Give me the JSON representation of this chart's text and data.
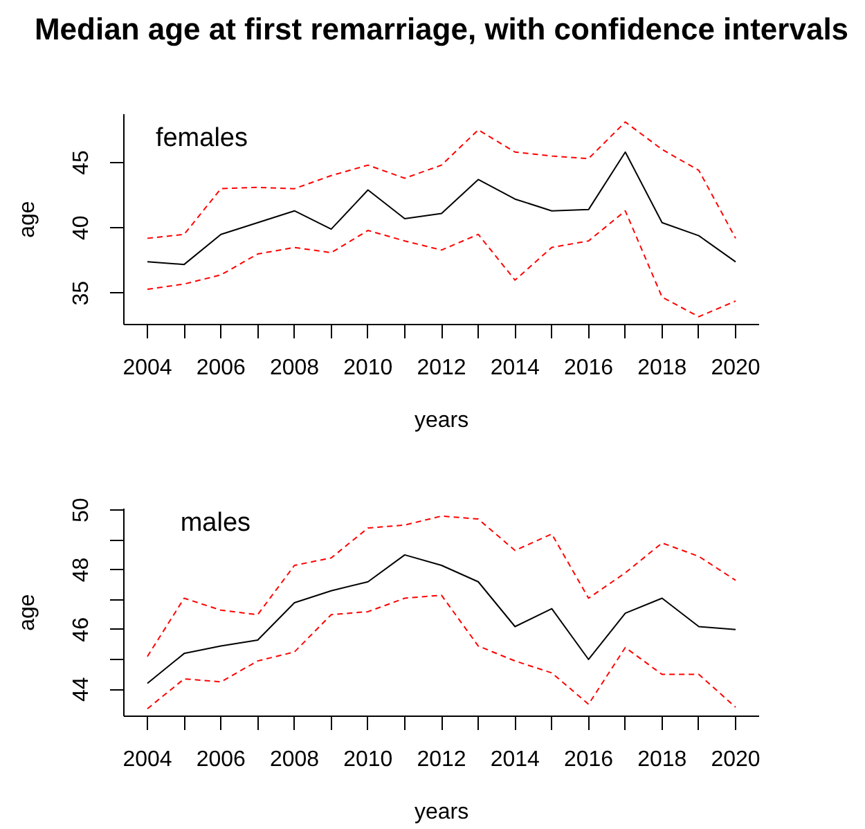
{
  "chart_data": [
    {
      "type": "line",
      "title": "Median age at first remarriage, with confidence intervals",
      "xlabel": "years",
      "ylabel": "age",
      "annotations": [
        "females"
      ],
      "x": [
        2004,
        2005,
        2006,
        2007,
        2008,
        2009,
        2010,
        2011,
        2012,
        2013,
        2014,
        2015,
        2016,
        2017,
        2018,
        2019,
        2020
      ],
      "series": [
        {
          "color": "#000000",
          "line_style": "solid",
          "values": [
            37.4,
            37.2,
            39.5,
            40.4,
            41.3,
            39.9,
            42.9,
            40.7,
            41.1,
            43.7,
            42.2,
            41.3,
            41.4,
            45.8,
            40.4,
            39.4,
            37.4
          ]
        },
        {
          "color": "#ff0000",
          "line_style": "dashed",
          "values": [
            39.2,
            39.5,
            43.0,
            43.1,
            43.0,
            44.0,
            44.8,
            43.8,
            44.8,
            47.5,
            45.8,
            45.5,
            45.3,
            48.1,
            46.0,
            44.4,
            39.2
          ]
        },
        {
          "color": "#ff0000",
          "line_style": "dashed",
          "values": [
            35.3,
            35.7,
            36.4,
            38.0,
            38.5,
            38.1,
            39.8,
            39.0,
            38.3,
            39.5,
            36.0,
            38.5,
            39.0,
            41.3,
            34.7,
            33.2,
            34.4
          ]
        }
      ],
      "xlim": [
        2003.36,
        2020.64
      ],
      "ylim": [
        32.6,
        48.7
      ],
      "xticks": [
        2004,
        {
          "value": 2005,
          "label": null
        },
        2006,
        {
          "value": 2007,
          "label": null
        },
        2008,
        {
          "value": 2009,
          "label": null
        },
        2010,
        {
          "value": 2011,
          "label": null
        },
        2012,
        {
          "value": 2013,
          "label": null
        },
        2014,
        {
          "value": 2015,
          "label": null
        },
        2016,
        {
          "value": 2017,
          "label": null
        },
        2018,
        {
          "value": 2019,
          "label": null
        },
        2020
      ],
      "yticks": [
        35,
        40,
        45
      ]
    },
    {
      "type": "line",
      "xlabel": "years",
      "ylabel": "age",
      "annotations": [
        "males"
      ],
      "x": [
        2004,
        2005,
        2006,
        2007,
        2008,
        2009,
        2010,
        2011,
        2012,
        2013,
        2014,
        2015,
        2016,
        2017,
        2018,
        2019,
        2020
      ],
      "series": [
        {
          "color": "#000000",
          "line_style": "solid",
          "values": [
            44.2,
            45.2,
            45.45,
            45.65,
            46.9,
            47.3,
            47.6,
            48.5,
            48.15,
            47.6,
            46.1,
            46.7,
            45.0,
            46.55,
            47.05,
            46.1,
            46.0
          ]
        },
        {
          "color": "#ff0000",
          "line_style": "dashed",
          "values": [
            45.1,
            47.05,
            46.65,
            46.5,
            48.15,
            48.4,
            49.4,
            49.5,
            49.8,
            49.7,
            48.65,
            49.2,
            47.05,
            47.9,
            48.9,
            48.45,
            47.65
          ]
        },
        {
          "color": "#ff0000",
          "line_style": "dashed",
          "values": [
            43.35,
            44.35,
            44.25,
            44.95,
            45.25,
            46.5,
            46.6,
            47.05,
            47.15,
            45.45,
            44.95,
            44.55,
            43.5,
            45.4,
            44.5,
            44.5,
            43.4
          ]
        }
      ],
      "xlim": [
        2003.36,
        2020.64
      ],
      "ylim": [
        43.1,
        50.05
      ],
      "xticks": [
        2004,
        {
          "value": 2005,
          "label": null
        },
        2006,
        {
          "value": 2007,
          "label": null
        },
        2008,
        {
          "value": 2009,
          "label": null
        },
        2010,
        {
          "value": 2011,
          "label": null
        },
        2012,
        {
          "value": 2013,
          "label": null
        },
        2014,
        {
          "value": 2015,
          "label": null
        },
        2016,
        {
          "value": 2017,
          "label": null
        },
        2018,
        {
          "value": 2019,
          "label": null
        },
        2020
      ],
      "yticks": [
        44,
        {
          "value": 45,
          "label": null
        },
        46,
        {
          "value": 47,
          "label": null
        },
        48,
        {
          "value": 49,
          "label": null
        },
        50
      ]
    }
  ]
}
